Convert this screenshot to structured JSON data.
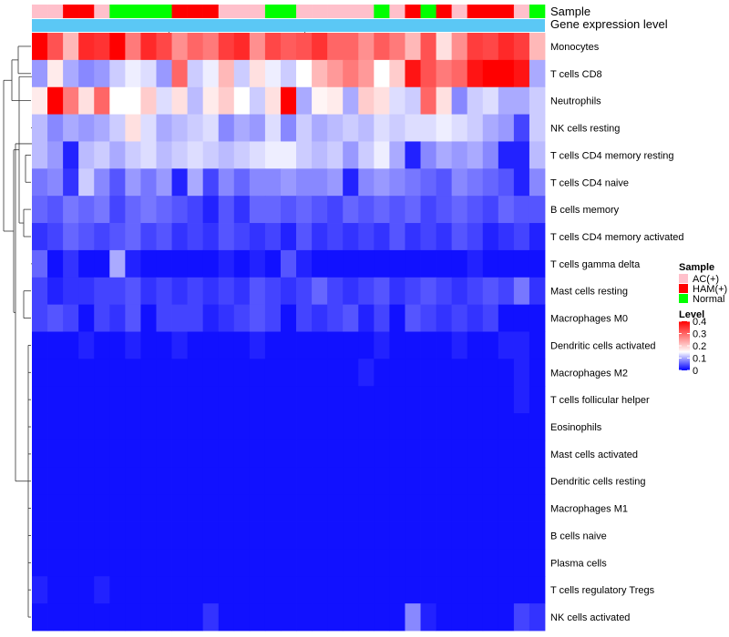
{
  "chart_data": {
    "type": "heatmap",
    "title": "",
    "annotation_tracks": [
      "Sample",
      "Gene expression level"
    ],
    "rows": [
      "Monocytes",
      "T cells CD8",
      "Neutrophils",
      "NK cells resting",
      "T cells CD4 memory resting",
      "T cells CD4 naive",
      "B cells memory",
      "T cells CD4 memory activated",
      "T cells gamma delta",
      "Mast cells resting",
      "Macrophages M0",
      "Dendritic cells activated",
      "Macrophages M2",
      "T cells follicular helper",
      "Eosinophils",
      "Mast cells activated",
      "Dendritic cells resting",
      "Macrophages M1",
      "B cells naive",
      "Plasma cells",
      "T cells regulatory  Tregs",
      "NK cells activated"
    ],
    "sample_groups": [
      "AC(+)",
      "AC(+)",
      "HAM(+)",
      "HAM(+)",
      "AC(+)",
      "Normal",
      "Normal",
      "Normal",
      "Normal",
      "HAM(+)",
      "HAM(+)",
      "HAM(+)",
      "AC(+)",
      "AC(+)",
      "AC(+)",
      "Normal",
      "Normal",
      "AC(+)",
      "AC(+)",
      "AC(+)",
      "AC(+)",
      "AC(+)",
      "Normal",
      "AC(+)",
      "HAM(+)",
      "Normal",
      "HAM(+)",
      "AC(+)",
      "HAM(+)",
      "HAM(+)",
      "HAM(+)",
      "AC(+)",
      "Normal"
    ],
    "values": [
      [
        0.4,
        0.32,
        0.22,
        0.36,
        0.35,
        0.4,
        0.28,
        0.36,
        0.33,
        0.26,
        0.3,
        0.28,
        0.34,
        0.36,
        0.26,
        0.33,
        0.31,
        0.32,
        0.35,
        0.3,
        0.3,
        0.26,
        0.31,
        0.28,
        0.22,
        0.32,
        0.18,
        0.26,
        0.34,
        0.33,
        0.36,
        0.34,
        0.22
      ],
      [
        0.09,
        0.17,
        0.1,
        0.08,
        0.09,
        0.12,
        0.14,
        0.13,
        0.09,
        0.3,
        0.12,
        0.14,
        0.22,
        0.12,
        0.18,
        0.14,
        0.12,
        0.15,
        0.22,
        0.25,
        0.28,
        0.25,
        0.15,
        0.2,
        0.38,
        0.32,
        0.28,
        0.3,
        0.38,
        0.4,
        0.4,
        0.38,
        0.1
      ],
      [
        0.17,
        0.4,
        0.28,
        0.18,
        0.3,
        0.15,
        0.15,
        0.2,
        0.13,
        0.18,
        0.11,
        0.17,
        0.2,
        0.15,
        0.12,
        0.18,
        0.4,
        0.1,
        0.16,
        0.17,
        0.1,
        0.2,
        0.18,
        0.13,
        0.12,
        0.3,
        0.18,
        0.08,
        0.12,
        0.13,
        0.1,
        0.1,
        0.12
      ],
      [
        0.11,
        0.08,
        0.1,
        0.09,
        0.1,
        0.12,
        0.18,
        0.13,
        0.1,
        0.11,
        0.12,
        0.13,
        0.08,
        0.1,
        0.09,
        0.13,
        0.08,
        0.12,
        0.1,
        0.11,
        0.12,
        0.11,
        0.13,
        0.12,
        0.13,
        0.13,
        0.14,
        0.13,
        0.12,
        0.1,
        0.09,
        0.04,
        0.12
      ],
      [
        0.11,
        0.09,
        0.02,
        0.11,
        0.12,
        0.1,
        0.12,
        0.13,
        0.11,
        0.12,
        0.13,
        0.12,
        0.11,
        0.12,
        0.13,
        0.14,
        0.14,
        0.12,
        0.11,
        0.12,
        0.09,
        0.12,
        0.14,
        0.1,
        0.02,
        0.08,
        0.1,
        0.09,
        0.1,
        0.08,
        0.02,
        0.02,
        0.11
      ],
      [
        0.07,
        0.08,
        0.03,
        0.12,
        0.08,
        0.05,
        0.09,
        0.07,
        0.09,
        0.02,
        0.1,
        0.04,
        0.08,
        0.06,
        0.08,
        0.08,
        0.09,
        0.08,
        0.08,
        0.09,
        0.02,
        0.08,
        0.09,
        0.08,
        0.07,
        0.06,
        0.05,
        0.08,
        0.07,
        0.06,
        0.05,
        0.02,
        0.08
      ],
      [
        0.06,
        0.05,
        0.07,
        0.06,
        0.07,
        0.04,
        0.06,
        0.07,
        0.06,
        0.05,
        0.04,
        0.02,
        0.05,
        0.03,
        0.06,
        0.06,
        0.05,
        0.06,
        0.05,
        0.04,
        0.06,
        0.05,
        0.06,
        0.05,
        0.06,
        0.04,
        0.05,
        0.06,
        0.05,
        0.04,
        0.06,
        0.05,
        0.05
      ],
      [
        0.03,
        0.04,
        0.06,
        0.05,
        0.04,
        0.05,
        0.06,
        0.04,
        0.05,
        0.03,
        0.04,
        0.03,
        0.05,
        0.04,
        0.03,
        0.04,
        0.02,
        0.05,
        0.03,
        0.04,
        0.03,
        0.04,
        0.03,
        0.05,
        0.03,
        0.04,
        0.03,
        0.05,
        0.04,
        0.02,
        0.03,
        0.04,
        0.02
      ],
      [
        0.06,
        0.01,
        0.03,
        0.01,
        0.01,
        0.1,
        0.02,
        0.01,
        0.01,
        0.01,
        0.01,
        0.01,
        0.02,
        0.01,
        0.02,
        0.01,
        0.05,
        0.02,
        0.01,
        0.01,
        0.01,
        0.01,
        0.01,
        0.01,
        0.01,
        0.01,
        0.01,
        0.01,
        0.02,
        0.01,
        0.01,
        0.01,
        0.01
      ],
      [
        0.04,
        0.02,
        0.03,
        0.03,
        0.04,
        0.04,
        0.05,
        0.03,
        0.04,
        0.03,
        0.04,
        0.03,
        0.04,
        0.03,
        0.05,
        0.04,
        0.03,
        0.04,
        0.06,
        0.04,
        0.03,
        0.04,
        0.05,
        0.03,
        0.04,
        0.05,
        0.04,
        0.03,
        0.04,
        0.05,
        0.04,
        0.07,
        0.03
      ],
      [
        0.04,
        0.05,
        0.04,
        0.01,
        0.04,
        0.03,
        0.05,
        0.01,
        0.04,
        0.04,
        0.04,
        0.02,
        0.03,
        0.04,
        0.05,
        0.04,
        0.01,
        0.04,
        0.03,
        0.04,
        0.05,
        0.02,
        0.04,
        0.01,
        0.05,
        0.04,
        0.03,
        0.04,
        0.03,
        0.04,
        0.01,
        0.01,
        0.01
      ],
      [
        0.01,
        0.01,
        0.01,
        0.02,
        0.01,
        0.01,
        0.02,
        0.01,
        0.01,
        0.02,
        0.01,
        0.01,
        0.01,
        0.01,
        0.02,
        0.01,
        0.01,
        0.01,
        0.01,
        0.01,
        0.01,
        0.01,
        0.02,
        0.01,
        0.01,
        0.01,
        0.01,
        0.02,
        0.01,
        0.01,
        0.02,
        0.02,
        0.01
      ],
      [
        0.01,
        0.01,
        0.01,
        0.01,
        0.01,
        0.01,
        0.01,
        0.01,
        0.01,
        0.01,
        0.01,
        0.01,
        0.01,
        0.01,
        0.01,
        0.01,
        0.01,
        0.01,
        0.01,
        0.01,
        0.01,
        0.02,
        0.01,
        0.01,
        0.01,
        0.01,
        0.01,
        0.01,
        0.01,
        0.01,
        0.01,
        0.02,
        0.01
      ],
      [
        0.01,
        0.01,
        0.01,
        0.01,
        0.01,
        0.01,
        0.01,
        0.01,
        0.01,
        0.01,
        0.01,
        0.01,
        0.01,
        0.01,
        0.01,
        0.01,
        0.01,
        0.01,
        0.01,
        0.01,
        0.01,
        0.01,
        0.01,
        0.01,
        0.01,
        0.01,
        0.01,
        0.01,
        0.01,
        0.01,
        0.01,
        0.02,
        0.01
      ],
      [
        0.01,
        0.01,
        0.01,
        0.01,
        0.01,
        0.01,
        0.01,
        0.01,
        0.01,
        0.01,
        0.01,
        0.01,
        0.01,
        0.01,
        0.01,
        0.01,
        0.01,
        0.01,
        0.01,
        0.01,
        0.01,
        0.01,
        0.01,
        0.01,
        0.01,
        0.01,
        0.01,
        0.01,
        0.01,
        0.01,
        0.01,
        0.01,
        0.01
      ],
      [
        0.01,
        0.01,
        0.01,
        0.01,
        0.01,
        0.01,
        0.01,
        0.01,
        0.01,
        0.01,
        0.01,
        0.01,
        0.01,
        0.01,
        0.01,
        0.01,
        0.01,
        0.01,
        0.01,
        0.01,
        0.01,
        0.01,
        0.01,
        0.01,
        0.01,
        0.01,
        0.01,
        0.01,
        0.01,
        0.01,
        0.01,
        0.01,
        0.01
      ],
      [
        0.01,
        0.01,
        0.01,
        0.01,
        0.01,
        0.01,
        0.01,
        0.01,
        0.01,
        0.01,
        0.01,
        0.01,
        0.01,
        0.01,
        0.01,
        0.01,
        0.01,
        0.01,
        0.01,
        0.01,
        0.01,
        0.01,
        0.01,
        0.01,
        0.01,
        0.01,
        0.01,
        0.01,
        0.01,
        0.01,
        0.01,
        0.01,
        0.01
      ],
      [
        0.01,
        0.01,
        0.01,
        0.01,
        0.01,
        0.01,
        0.01,
        0.01,
        0.01,
        0.01,
        0.01,
        0.01,
        0.01,
        0.01,
        0.01,
        0.01,
        0.01,
        0.01,
        0.01,
        0.01,
        0.01,
        0.01,
        0.01,
        0.01,
        0.01,
        0.01,
        0.01,
        0.01,
        0.01,
        0.01,
        0.01,
        0.01,
        0.01
      ],
      [
        0.01,
        0.01,
        0.01,
        0.01,
        0.01,
        0.01,
        0.01,
        0.01,
        0.01,
        0.01,
        0.01,
        0.01,
        0.01,
        0.01,
        0.01,
        0.01,
        0.01,
        0.01,
        0.01,
        0.01,
        0.01,
        0.01,
        0.01,
        0.01,
        0.01,
        0.01,
        0.01,
        0.01,
        0.01,
        0.01,
        0.01,
        0.01,
        0.01
      ],
      [
        0.01,
        0.01,
        0.01,
        0.01,
        0.01,
        0.01,
        0.01,
        0.01,
        0.01,
        0.01,
        0.01,
        0.01,
        0.01,
        0.01,
        0.01,
        0.01,
        0.01,
        0.01,
        0.01,
        0.01,
        0.01,
        0.01,
        0.01,
        0.01,
        0.01,
        0.01,
        0.01,
        0.01,
        0.01,
        0.01,
        0.01,
        0.01,
        0.01
      ],
      [
        0.02,
        0.01,
        0.01,
        0.01,
        0.02,
        0.01,
        0.01,
        0.01,
        0.01,
        0.01,
        0.01,
        0.01,
        0.01,
        0.01,
        0.01,
        0.01,
        0.01,
        0.01,
        0.01,
        0.01,
        0.01,
        0.01,
        0.01,
        0.01,
        0.01,
        0.01,
        0.01,
        0.01,
        0.01,
        0.01,
        0.01,
        0.01,
        0.01
      ],
      [
        0.01,
        0.01,
        0.01,
        0.01,
        0.01,
        0.01,
        0.01,
        0.01,
        0.01,
        0.01,
        0.01,
        0.03,
        0.01,
        0.01,
        0.01,
        0.01,
        0.01,
        0.01,
        0.01,
        0.01,
        0.01,
        0.01,
        0.01,
        0.01,
        0.08,
        0.02,
        0.01,
        0.01,
        0.01,
        0.01,
        0.01,
        0.04,
        0.03
      ]
    ],
    "color_scale": {
      "min": 0,
      "max": 0.4,
      "low": "#0000FF",
      "mid": "#FFFFFF",
      "high": "#FF0000",
      "mid_value": 0.15
    },
    "legends": {
      "sample": {
        "title": "Sample",
        "entries": [
          {
            "label": "AC(+)",
            "color": "#FFC0CB"
          },
          {
            "label": "HAM(+)",
            "color": "#FF0000"
          },
          {
            "label": "Normal",
            "color": "#00FF00"
          }
        ]
      },
      "level": {
        "title": "Level",
        "ticks": [
          "0.4",
          "0.3",
          "0.2",
          "0.1",
          "0"
        ]
      }
    },
    "expression_track_color": "#5BC8F5",
    "dendrogram": "row dendrogram shown on left"
  }
}
